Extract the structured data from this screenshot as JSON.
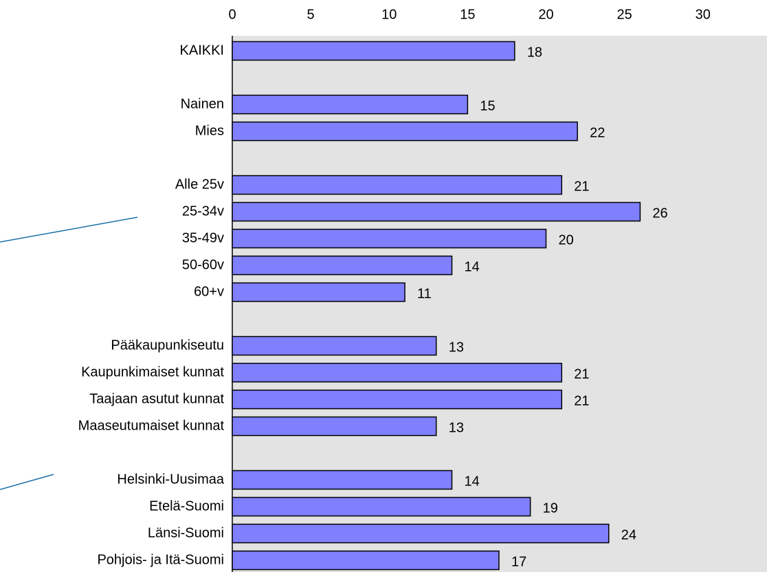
{
  "chart_data": {
    "type": "bar",
    "orientation": "horizontal",
    "categories": [
      "KAIKKI",
      null,
      "Nainen",
      "Mies",
      null,
      "Alle 25v",
      "25-34v",
      "35-49v",
      "50-60v",
      "60+v",
      null,
      "Pääkaupunkiseutu",
      "Kaupunkimaiset kunnat",
      "Taajaan asutut kunnat",
      "Maaseutumaiset kunnat",
      null,
      "Helsinki-Uusimaa",
      "Etelä-Suomi",
      "Länsi-Suomi",
      "Pohjois- ja Itä-Suomi"
    ],
    "values": [
      18,
      null,
      15,
      22,
      null,
      21,
      26,
      20,
      14,
      11,
      null,
      13,
      21,
      21,
      13,
      null,
      14,
      19,
      24,
      17
    ],
    "color": "#8080ff",
    "xlim": [
      0,
      34
    ],
    "xticks": [
      0,
      5,
      10,
      15,
      20,
      25,
      30
    ]
  }
}
